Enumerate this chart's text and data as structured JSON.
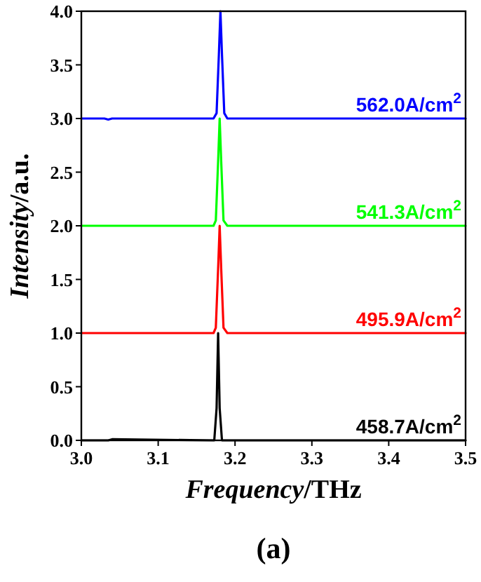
{
  "chart_data": {
    "type": "line",
    "xlabel": "Frequency/THz",
    "ylabel": "Intensity/a.u.",
    "annotations": [
      "(a)"
    ],
    "xlim": [
      3.0,
      3.5
    ],
    "ylim": [
      0,
      4.0
    ],
    "xticks": [
      {
        "value": 3,
        "label": "3.0"
      },
      {
        "value": 3.1,
        "label": "3.1"
      },
      {
        "value": 3.2,
        "label": "3.2"
      },
      {
        "value": 3.3,
        "label": "3.3"
      },
      {
        "value": 3.4,
        "label": "3.4"
      },
      {
        "value": 3.5,
        "label": "3.5"
      }
    ],
    "yticks": [
      {
        "value": 0,
        "label": "0.0"
      },
      {
        "value": 0.5,
        "label": "0.5"
      },
      {
        "value": 1,
        "label": "1.0"
      },
      {
        "value": 1.5,
        "label": "1.5"
      },
      {
        "value": 2,
        "label": "2.0"
      },
      {
        "value": 2.5,
        "label": "2.5"
      },
      {
        "value": 3,
        "label": "3.0"
      },
      {
        "value": 3.5,
        "label": "3.5"
      },
      {
        "value": 4,
        "label": "4.0"
      }
    ],
    "grid": false,
    "marker": "none",
    "line_style": "solid",
    "series": [
      {
        "name": "562.0A/cm$^{2}$",
        "color": "#0000ff",
        "x": [
          3.0,
          3.03,
          3.035,
          3.04,
          3.172,
          3.176,
          3.179,
          3.181,
          3.183,
          3.186,
          3.19,
          3.5
        ],
        "values": [
          3.0,
          3.0,
          2.99,
          3.0,
          3.0,
          3.05,
          3.6,
          4.0,
          3.6,
          3.05,
          3.0,
          3.0
        ]
      },
      {
        "name": "541.3A/cm$^{2}$",
        "color": "#00ff00",
        "x": [
          3.0,
          3.172,
          3.175,
          3.178,
          3.18,
          3.182,
          3.185,
          3.19,
          3.5
        ],
        "values": [
          2.0,
          2.0,
          2.05,
          2.6,
          3.0,
          2.6,
          2.05,
          2.0,
          2.0
        ]
      },
      {
        "name": "495.9A/cm$^{2}$",
        "color": "#ff0000",
        "x": [
          3.0,
          3.172,
          3.175,
          3.178,
          3.18,
          3.182,
          3.185,
          3.19,
          3.5
        ],
        "values": [
          1.0,
          1.0,
          1.05,
          1.6,
          2.0,
          1.6,
          1.05,
          1.0,
          1.0
        ]
      },
      {
        "name": "458.7A/cm$^{2}$",
        "color": "#000000",
        "x": [
          3.0,
          3.035,
          3.04,
          3.173,
          3.176,
          3.178,
          3.18,
          3.183,
          3.5
        ],
        "values": [
          0.0,
          0.0,
          0.01,
          0.0,
          0.3,
          1.0,
          0.3,
          0.0,
          0.0
        ]
      }
    ]
  }
}
